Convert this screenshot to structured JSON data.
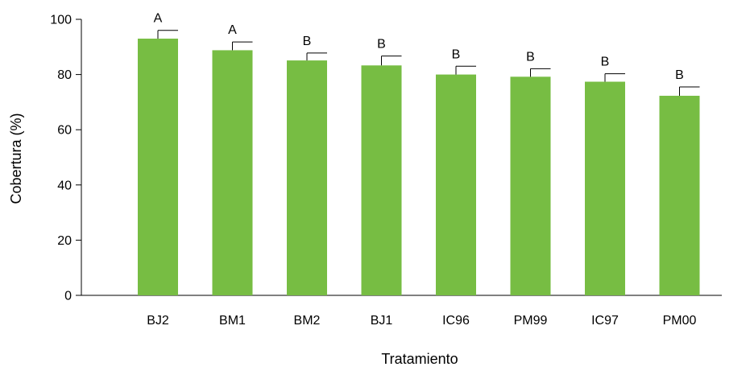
{
  "chart_data": {
    "type": "bar",
    "title": "",
    "xlabel": "Tratamiento",
    "ylabel": "Cobertura (%)",
    "ylim": [
      0,
      100
    ],
    "yticks": [
      0,
      20,
      40,
      60,
      80,
      100
    ],
    "categories": [
      "BJ2",
      "BM1",
      "BM2",
      "BJ1",
      "IC96",
      "PM99",
      "IC97",
      "PM00"
    ],
    "values": [
      93.0,
      88.8,
      85.1,
      83.3,
      80.0,
      79.2,
      77.4,
      72.3
    ],
    "errors": [
      3.0,
      3.0,
      2.7,
      3.4,
      3.0,
      2.9,
      2.9,
      3.2
    ],
    "significance_labels": [
      "A",
      "A",
      "B",
      "B",
      "B",
      "B",
      "B",
      "B"
    ],
    "bar_color": "#77bd43",
    "grid": false,
    "legend": "none"
  }
}
